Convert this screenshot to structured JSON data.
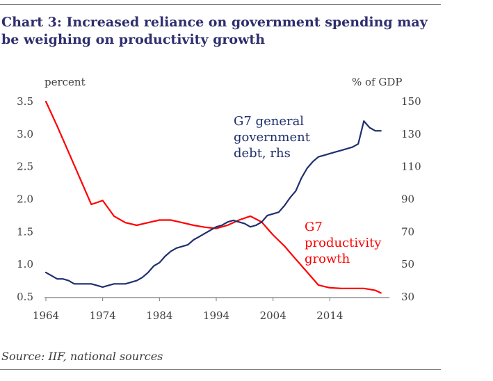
{
  "chart_data": {
    "type": "line",
    "title": "Chart 3: Increased reliance on government spending may be weighing on productivity growth",
    "source": "Source: IIF, national sources",
    "y_left_label": "percent",
    "y_right_label": "% of GDP",
    "xlim": [
      1964,
      2024
    ],
    "ylim_left": [
      0.5,
      3.5
    ],
    "ylim_right": [
      30,
      150
    ],
    "x_ticks": [
      "1964",
      "1974",
      "1984",
      "1994",
      "2004",
      "2014"
    ],
    "y_left_ticks": [
      "3.5",
      "3.0",
      "2.5",
      "2.0",
      "1.5",
      "1.0",
      "0.5"
    ],
    "y_right_ticks": [
      "150",
      "130",
      "110",
      "90",
      "70",
      "50",
      "30"
    ],
    "series": [
      {
        "name": "G7 productivity growth",
        "label_lines": [
          "G7",
          "productivity",
          "growth"
        ],
        "axis": "left",
        "color": "#ff0000",
        "x": [
          1964,
          1966,
          1968,
          1970,
          1972,
          1974,
          1976,
          1978,
          1980,
          1982,
          1984,
          1986,
          1988,
          1990,
          1992,
          1994,
          1996,
          1998,
          2000,
          2002,
          2004,
          2006,
          2008,
          2010,
          2012,
          2014,
          2016,
          2018,
          2020,
          2022,
          2023
        ],
        "values": [
          3.5,
          3.12,
          2.72,
          2.32,
          1.92,
          1.98,
          1.74,
          1.64,
          1.6,
          1.64,
          1.68,
          1.68,
          1.64,
          1.6,
          1.57,
          1.55,
          1.6,
          1.68,
          1.74,
          1.65,
          1.45,
          1.28,
          1.08,
          0.88,
          0.68,
          0.64,
          0.63,
          0.63,
          0.63,
          0.6,
          0.56
        ]
      },
      {
        "name": "G7 general government debt, rhs",
        "label_lines": [
          "G7 general",
          "government",
          "debt, rhs"
        ],
        "axis": "right",
        "color": "#1f2f6e",
        "x": [
          1964,
          1965,
          1966,
          1967,
          1968,
          1969,
          1970,
          1971,
          1972,
          1973,
          1974,
          1975,
          1976,
          1977,
          1978,
          1979,
          1980,
          1981,
          1982,
          1983,
          1984,
          1985,
          1986,
          1987,
          1988,
          1989,
          1990,
          1991,
          1992,
          1993,
          1994,
          1995,
          1996,
          1997,
          1998,
          1999,
          2000,
          2001,
          2002,
          2003,
          2004,
          2005,
          2006,
          2007,
          2008,
          2009,
          2010,
          2011,
          2012,
          2013,
          2014,
          2015,
          2016,
          2017,
          2018,
          2019,
          2020,
          2021,
          2022,
          2023
        ],
        "values": [
          45,
          43,
          41,
          41,
          40,
          38,
          38,
          38,
          38,
          37,
          36,
          37,
          38,
          38,
          38,
          39,
          40,
          42,
          45,
          49,
          51,
          55,
          58,
          60,
          61,
          62,
          65,
          67,
          69,
          71,
          73,
          74,
          76,
          77,
          76,
          75,
          73,
          74,
          76,
          80,
          81,
          82,
          86,
          91,
          95,
          103,
          109,
          113,
          116,
          117,
          118,
          119,
          120,
          121,
          122,
          124,
          138,
          134,
          132,
          132
        ]
      }
    ]
  }
}
